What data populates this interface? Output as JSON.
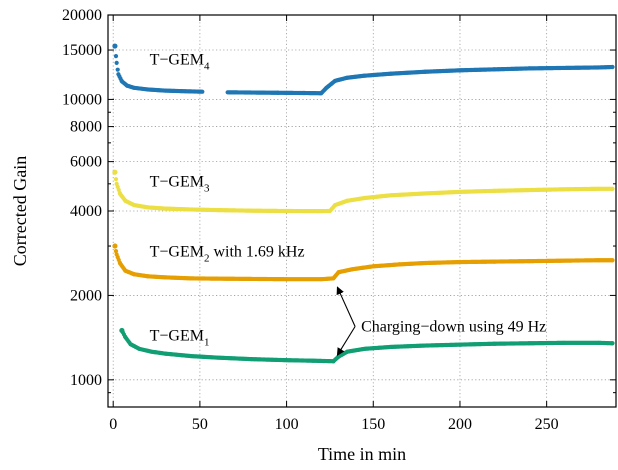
{
  "chart_data": {
    "type": "scatter",
    "xlabel": "Time in min",
    "ylabel": "Corrected Gain",
    "xlim": [
      -3,
      290
    ],
    "ylim": [
      800,
      20000
    ],
    "yscale": "log",
    "grid": true,
    "x_ticks": [
      0,
      50,
      100,
      150,
      200,
      250
    ],
    "y_ticks": [
      1000,
      2000,
      4000,
      6000,
      8000,
      10000,
      15000,
      20000
    ],
    "series": [
      {
        "label_main": "T−GEM",
        "label_sub": "4",
        "label_suffix": "",
        "color": "#1f77b4",
        "points": [
          [
            1,
            15500
          ],
          [
            2,
            13500
          ],
          [
            3,
            12300
          ],
          [
            5,
            11600
          ],
          [
            8,
            11200
          ],
          [
            12,
            11000
          ],
          [
            20,
            10850
          ],
          [
            30,
            10750
          ],
          [
            40,
            10700
          ],
          [
            52,
            10650
          ],
          [
            66,
            10600
          ],
          [
            80,
            10580
          ],
          [
            95,
            10560
          ],
          [
            110,
            10540
          ],
          [
            120,
            10520
          ],
          [
            123,
            11000
          ],
          [
            128,
            11650
          ],
          [
            135,
            11950
          ],
          [
            145,
            12150
          ],
          [
            160,
            12350
          ],
          [
            180,
            12550
          ],
          [
            200,
            12700
          ],
          [
            220,
            12800
          ],
          [
            240,
            12900
          ],
          [
            260,
            12950
          ],
          [
            280,
            13000
          ],
          [
            288,
            13050
          ]
        ]
      },
      {
        "label_main": "T−GEM",
        "label_sub": "3",
        "label_suffix": "",
        "color": "#ecdf45",
        "points": [
          [
            1,
            5500
          ],
          [
            2,
            5000
          ],
          [
            4,
            4600
          ],
          [
            7,
            4350
          ],
          [
            12,
            4200
          ],
          [
            20,
            4120
          ],
          [
            30,
            4080
          ],
          [
            45,
            4050
          ],
          [
            60,
            4030
          ],
          [
            80,
            4010
          ],
          [
            100,
            4000
          ],
          [
            118,
            3995
          ],
          [
            125,
            4000
          ],
          [
            128,
            4200
          ],
          [
            135,
            4350
          ],
          [
            145,
            4450
          ],
          [
            160,
            4550
          ],
          [
            180,
            4620
          ],
          [
            200,
            4680
          ],
          [
            220,
            4720
          ],
          [
            240,
            4750
          ],
          [
            260,
            4780
          ],
          [
            280,
            4800
          ],
          [
            288,
            4800
          ]
        ]
      },
      {
        "label_main": "T−GEM",
        "label_sub": "2",
        "label_suffix": " with 1.69 kHz",
        "color": "#e69f00",
        "points": [
          [
            1,
            3000
          ],
          [
            2,
            2800
          ],
          [
            4,
            2600
          ],
          [
            7,
            2450
          ],
          [
            12,
            2380
          ],
          [
            20,
            2340
          ],
          [
            30,
            2320
          ],
          [
            45,
            2300
          ],
          [
            60,
            2295
          ],
          [
            80,
            2290
          ],
          [
            100,
            2285
          ],
          [
            120,
            2285
          ],
          [
            127,
            2300
          ],
          [
            130,
            2420
          ],
          [
            138,
            2480
          ],
          [
            150,
            2540
          ],
          [
            165,
            2580
          ],
          [
            180,
            2610
          ],
          [
            200,
            2630
          ],
          [
            220,
            2640
          ],
          [
            240,
            2650
          ],
          [
            260,
            2660
          ],
          [
            280,
            2670
          ],
          [
            288,
            2670
          ]
        ]
      },
      {
        "label_main": "T−GEM",
        "label_sub": "1",
        "label_suffix": "",
        "color": "#119e73",
        "points": [
          [
            5,
            1500
          ],
          [
            7,
            1420
          ],
          [
            10,
            1340
          ],
          [
            15,
            1290
          ],
          [
            22,
            1260
          ],
          [
            30,
            1240
          ],
          [
            45,
            1215
          ],
          [
            60,
            1200
          ],
          [
            80,
            1185
          ],
          [
            100,
            1175
          ],
          [
            115,
            1170
          ],
          [
            127,
            1165
          ],
          [
            130,
            1210
          ],
          [
            135,
            1260
          ],
          [
            145,
            1290
          ],
          [
            160,
            1310
          ],
          [
            180,
            1325
          ],
          [
            200,
            1335
          ],
          [
            220,
            1345
          ],
          [
            240,
            1350
          ],
          [
            260,
            1355
          ],
          [
            280,
            1355
          ],
          [
            288,
            1350
          ]
        ]
      }
    ],
    "annotation": {
      "text": "Charging−down using 49 Hz",
      "targets": [
        [
          127,
          2285
        ],
        [
          127,
          1165
        ]
      ]
    }
  }
}
